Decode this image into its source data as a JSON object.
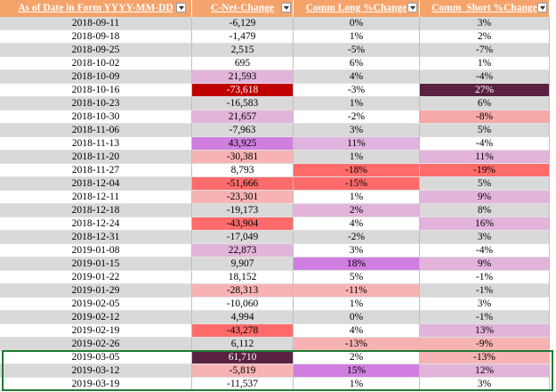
{
  "table": {
    "headers": [
      "As of Date in Form YYYY-MM-DD",
      "C-Net-Change",
      "Comm Long %Change",
      "Comm  Short %Change"
    ],
    "rows": [
      [
        "2018-09-11",
        "-6,129",
        "0%",
        "3%"
      ],
      [
        "2018-09-18",
        "-1,479",
        "1%",
        "2%"
      ],
      [
        "2018-09-25",
        "2,515",
        "-5%",
        "-7%"
      ],
      [
        "2018-10-02",
        "695",
        "6%",
        "1%"
      ],
      [
        "2018-10-09",
        "21,593",
        "4%",
        "-4%"
      ],
      [
        "2018-10-16",
        "-73,618",
        "-3%",
        "27%"
      ],
      [
        "2018-10-23",
        "-16,583",
        "1%",
        "6%"
      ],
      [
        "2018-10-30",
        "21,657",
        "-2%",
        "-8%"
      ],
      [
        "2018-11-06",
        "-7,963",
        "3%",
        "5%"
      ],
      [
        "2018-11-13",
        "43,925",
        "11%",
        "-4%"
      ],
      [
        "2018-11-20",
        "-30,381",
        "1%",
        "11%"
      ],
      [
        "2018-11-27",
        "8,793",
        "-18%",
        "-19%"
      ],
      [
        "2018-12-04",
        "-51,666",
        "-15%",
        "5%"
      ],
      [
        "2018-12-11",
        "-23,301",
        "1%",
        "9%"
      ],
      [
        "2018-12-18",
        "-19,173",
        "2%",
        "8%"
      ],
      [
        "2018-12-24",
        "-43,904",
        "4%",
        "16%"
      ],
      [
        "2018-12-31",
        "-17,049",
        "-2%",
        "3%"
      ],
      [
        "2019-01-08",
        "22,873",
        "3%",
        "-4%"
      ],
      [
        "2019-01-15",
        "9,907",
        "18%",
        "9%"
      ],
      [
        "2019-01-22",
        "18,152",
        "5%",
        "-1%"
      ],
      [
        "2019-01-29",
        "-28,313",
        "-11%",
        "-1%"
      ],
      [
        "2019-02-05",
        "-10,060",
        "1%",
        "3%"
      ],
      [
        "2019-02-12",
        "4,994",
        "0%",
        "-1%"
      ],
      [
        "2019-02-19",
        "-43,278",
        "4%",
        "13%"
      ],
      [
        "2019-02-26",
        "6,112",
        "-13%",
        "-9%"
      ],
      [
        "2019-03-05",
        "61,710",
        "2%",
        "-13%"
      ],
      [
        "2019-03-12",
        "-5,819",
        "15%",
        "12%"
      ],
      [
        "2019-03-19",
        "-11,537",
        "1%",
        "3%"
      ]
    ],
    "fills": [
      [
        null,
        null,
        null,
        null
      ],
      [
        null,
        null,
        null,
        null
      ],
      [
        null,
        null,
        null,
        null
      ],
      [
        null,
        null,
        null,
        null
      ],
      [
        null,
        "#e2b4dc",
        null,
        null
      ],
      [
        null,
        "#c00000",
        null,
        "#5a2240"
      ],
      [
        null,
        null,
        null,
        null
      ],
      [
        null,
        "#e2b4dc",
        null,
        "#f7a8a8"
      ],
      [
        null,
        null,
        null,
        null
      ],
      [
        null,
        "#d07ee0",
        "#e0b4e0",
        null
      ],
      [
        null,
        "#f7b3b3",
        null,
        "#e2b4dc"
      ],
      [
        null,
        null,
        "#ff6b6b",
        "#ff6b6b"
      ],
      [
        null,
        "#ff6b6b",
        "#ff6b6b",
        null
      ],
      [
        null,
        "#f7b3b3",
        null,
        "#e2b4dc"
      ],
      [
        null,
        null,
        "#e2b4dc",
        null
      ],
      [
        null,
        "#ff6b6b",
        null,
        "#e2b4dc"
      ],
      [
        null,
        null,
        null,
        null
      ],
      [
        null,
        "#e2b4dc",
        null,
        null
      ],
      [
        null,
        null,
        "#d07ee0",
        "#e2b4dc"
      ],
      [
        null,
        null,
        null,
        null
      ],
      [
        null,
        "#f7b3b3",
        "#f7b3b3",
        null
      ],
      [
        null,
        null,
        null,
        null
      ],
      [
        null,
        null,
        null,
        null
      ],
      [
        null,
        "#ff6b6b",
        null,
        "#e2b4dc"
      ],
      [
        null,
        null,
        "#f7b3b3",
        "#f7b3b3"
      ],
      [
        null,
        "#5a2240",
        null,
        "#f7b3b3"
      ],
      [
        null,
        "#f7b3b3",
        "#d07ee0",
        "#e2b4dc"
      ],
      [
        null,
        null,
        null,
        null
      ]
    ]
  }
}
